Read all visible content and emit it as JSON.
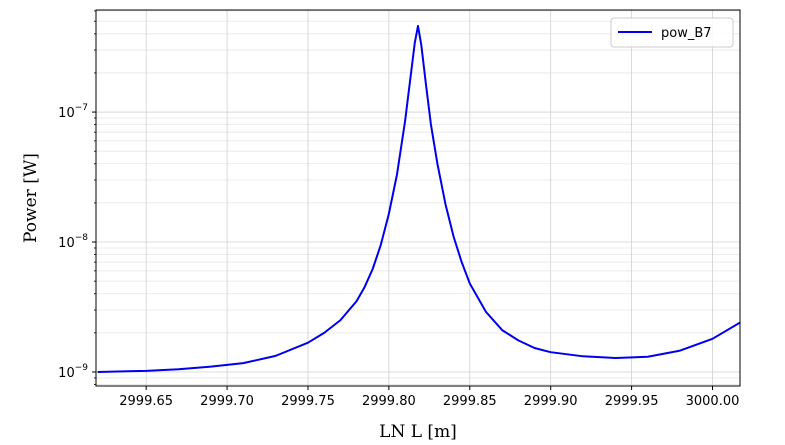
{
  "chart_data": {
    "type": "line",
    "title": "",
    "xlabel": "LN L [m]",
    "ylabel": "Power [W]",
    "yscale": "log",
    "xlim": [
      2999.619,
      3000.017
    ],
    "ylim": [
      7.8e-10,
      6.1e-07
    ],
    "grid": true,
    "legend": {
      "placement": "top-right",
      "entries": [
        "pow_B7"
      ]
    },
    "x_ticks": [
      {
        "value": 2999.65,
        "label": "2999.65"
      },
      {
        "value": 2999.7,
        "label": "2999.70"
      },
      {
        "value": 2999.75,
        "label": "2999.75"
      },
      {
        "value": 2999.8,
        "label": "2999.80"
      },
      {
        "value": 2999.85,
        "label": "2999.85"
      },
      {
        "value": 2999.9,
        "label": "2999.90"
      },
      {
        "value": 2999.95,
        "label": "2999.95"
      },
      {
        "value": 3000.0,
        "label": "3000.00"
      }
    ],
    "y_ticks": [
      {
        "value": 1e-09,
        "base": "10",
        "exp": "−9"
      },
      {
        "value": 1e-08,
        "base": "10",
        "exp": "−8"
      },
      {
        "value": 1e-07,
        "base": "10",
        "exp": "−7"
      }
    ],
    "series": [
      {
        "name": "pow_B7",
        "color": "#0000ee",
        "x": [
          2999.62,
          2999.65,
          2999.67,
          2999.69,
          2999.71,
          2999.73,
          2999.75,
          2999.76,
          2999.77,
          2999.78,
          2999.785,
          2999.79,
          2999.795,
          2999.8,
          2999.805,
          2999.81,
          2999.813,
          2999.816,
          2999.818,
          2999.82,
          2999.823,
          2999.826,
          2999.83,
          2999.835,
          2999.84,
          2999.845,
          2999.85,
          2999.86,
          2999.87,
          2999.88,
          2999.89,
          2999.9,
          2999.92,
          2999.94,
          2999.96,
          2999.98,
          3000.0,
          3000.017
        ],
        "values": [
          1e-09,
          1.02e-09,
          1.05e-09,
          1.1e-09,
          1.17e-09,
          1.33e-09,
          1.68e-09,
          2e-09,
          2.5e-09,
          3.5e-09,
          4.5e-09,
          6.2e-09,
          9.5e-09,
          1.65e-08,
          3.3e-08,
          8.5e-08,
          1.7e-07,
          3.4e-07,
          4.6e-07,
          3.3e-07,
          1.6e-07,
          8e-08,
          4e-08,
          1.95e-08,
          1.1e-08,
          7e-09,
          4.8e-09,
          2.9e-09,
          2.1e-09,
          1.75e-09,
          1.53e-09,
          1.42e-09,
          1.32e-09,
          1.28e-09,
          1.31e-09,
          1.46e-09,
          1.8e-09,
          2.4e-09
        ]
      }
    ]
  }
}
